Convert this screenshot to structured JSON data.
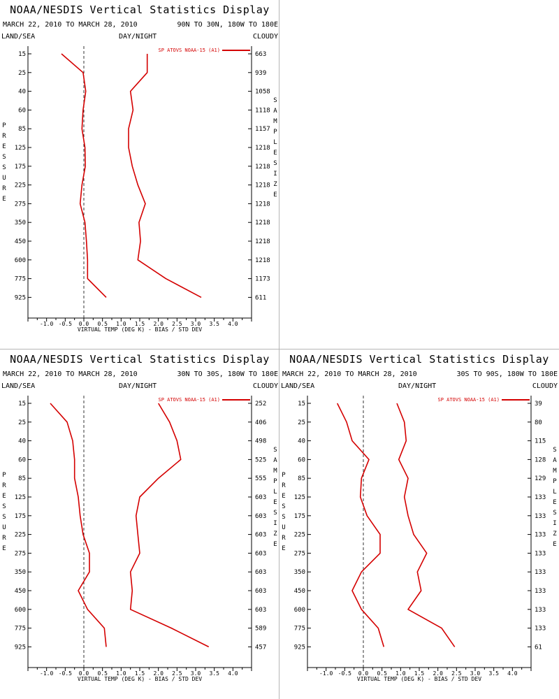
{
  "panels": [
    {
      "title": "NOAA/NESDIS Vertical Statistics Display",
      "dates": "MARCH 22, 2010 TO MARCH 28, 2010",
      "region": "90N TO 30N, 180W TO 180E",
      "land_sea": "LAND/SEA",
      "day_night": "DAY/NIGHT",
      "cloudy": "CLOUDY",
      "left_axis_word": "PRESSURE",
      "right_axis_word": "SAMPLESIZE",
      "legend": "SP ATOVS NOAA-15 (A1)",
      "line_color": "#d40000",
      "chart_data": {
        "type": "line",
        "xlabel": "VIRTUAL TEMP (DEG K) - BIAS / STD DEV",
        "ylabel": "PRESSURE",
        "xlim": [
          -1.5,
          4.5
        ],
        "x_ticks": [
          "-1.0",
          "-0.5",
          "0.0",
          "0.5",
          "1.0",
          "1.5",
          "2.0",
          "2.5",
          "3.0",
          "3.5",
          "4.0"
        ],
        "pressure_levels": [
          "15",
          "25",
          "40",
          "60",
          "85",
          "125",
          "175",
          "225",
          "275",
          "350",
          "450",
          "600",
          "775",
          "925"
        ],
        "sample_size": [
          "663",
          "939",
          "1058",
          "1118",
          "1157",
          "1218",
          "1218",
          "1218",
          "1218",
          "1218",
          "1218",
          "1218",
          "1173",
          "611"
        ],
        "series": [
          {
            "name": "SP ATOVS NOAA-15 (A1)",
            "values": [
              -0.6,
              -0.02,
              0.05,
              -0.02,
              -0.05,
              0.03,
              0.04,
              -0.05,
              -0.1,
              0.03,
              0.07,
              0.1,
              0.1,
              0.6
            ]
          },
          {
            "values": [
              1.7,
              1.7,
              1.25,
              1.32,
              1.2,
              1.2,
              1.3,
              1.45,
              1.65,
              1.48,
              1.52,
              1.45,
              2.2,
              3.15
            ]
          }
        ]
      }
    },
    {
      "title": "NOAA/NESDIS Vertical Statistics Display",
      "dates": "MARCH 22, 2010 TO MARCH 28, 2010",
      "region": "30N TO 30S, 180W TO 180E",
      "land_sea": "LAND/SEA",
      "day_night": "DAY/NIGHT",
      "cloudy": "CLOUDY",
      "left_axis_word": "PRESSURE",
      "right_axis_word": "SAMPLESIZE",
      "legend": "SP ATOVS NOAA-15 (A1)",
      "line_color": "#d40000",
      "chart_data": {
        "type": "line",
        "xlabel": "VIRTUAL TEMP (DEG K) - BIAS / STD DEV",
        "ylabel": "PRESSURE",
        "xlim": [
          -1.5,
          4.5
        ],
        "x_ticks": [
          "-1.0",
          "-0.5",
          "0.0",
          "0.5",
          "1.0",
          "1.5",
          "2.0",
          "2.5",
          "3.0",
          "3.5",
          "4.0"
        ],
        "pressure_levels": [
          "15",
          "25",
          "40",
          "60",
          "85",
          "125",
          "175",
          "225",
          "275",
          "350",
          "450",
          "600",
          "775",
          "925"
        ],
        "sample_size": [
          "252",
          "406",
          "498",
          "525",
          "555",
          "603",
          "603",
          "603",
          "603",
          "603",
          "603",
          "603",
          "589",
          "457"
        ],
        "series": [
          {
            "name": "SP ATOVS NOAA-15 (A1)",
            "values": [
              -0.9,
              -0.45,
              -0.3,
              -0.25,
              -0.25,
              -0.15,
              -0.1,
              -0.02,
              0.15,
              0.15,
              -0.15,
              0.1,
              0.55,
              0.6
            ]
          },
          {
            "values": [
              2.0,
              2.3,
              2.5,
              2.6,
              2.0,
              1.5,
              1.4,
              1.45,
              1.5,
              1.25,
              1.3,
              1.25,
              2.35,
              3.35
            ]
          }
        ]
      }
    },
    {
      "title": "NOAA/NESDIS Vertical Statistics Display",
      "dates": "MARCH 22, 2010 TO MARCH 28, 2010",
      "region": "30S TO 90S, 180W TO 180E",
      "land_sea": "LAND/SEA",
      "day_night": "DAY/NIGHT",
      "cloudy": "CLOUDY",
      "left_axis_word": "PRESSURE",
      "right_axis_word": "SAMPLESIZE",
      "legend": "SP ATOVS NOAA-15 (A1)",
      "line_color": "#d40000",
      "chart_data": {
        "type": "line",
        "xlabel": "VIRTUAL TEMP (DEG K) - BIAS / STD DEV",
        "ylabel": "PRESSURE",
        "xlim": [
          -1.5,
          4.5
        ],
        "x_ticks": [
          "-1.0",
          "-0.5",
          "0.0",
          "0.5",
          "1.0",
          "1.5",
          "2.0",
          "2.5",
          "3.0",
          "3.5",
          "4.0"
        ],
        "pressure_levels": [
          "15",
          "25",
          "40",
          "60",
          "85",
          "125",
          "175",
          "225",
          "275",
          "350",
          "450",
          "600",
          "775",
          "925"
        ],
        "sample_size": [
          "39",
          "80",
          "115",
          "128",
          "129",
          "133",
          "133",
          "133",
          "133",
          "133",
          "133",
          "133",
          "133",
          "61"
        ],
        "series": [
          {
            "name": "SP ATOVS NOAA-15 (A1)",
            "values": [
              -0.7,
              -0.45,
              -0.3,
              0.15,
              -0.05,
              -0.08,
              0.1,
              0.45,
              0.45,
              -0.05,
              -0.3,
              -0.05,
              0.4,
              0.55
            ]
          },
          {
            "values": [
              0.9,
              1.1,
              1.15,
              0.95,
              1.2,
              1.1,
              1.2,
              1.35,
              1.7,
              1.45,
              1.55,
              1.2,
              2.1,
              2.45
            ]
          }
        ]
      }
    }
  ]
}
